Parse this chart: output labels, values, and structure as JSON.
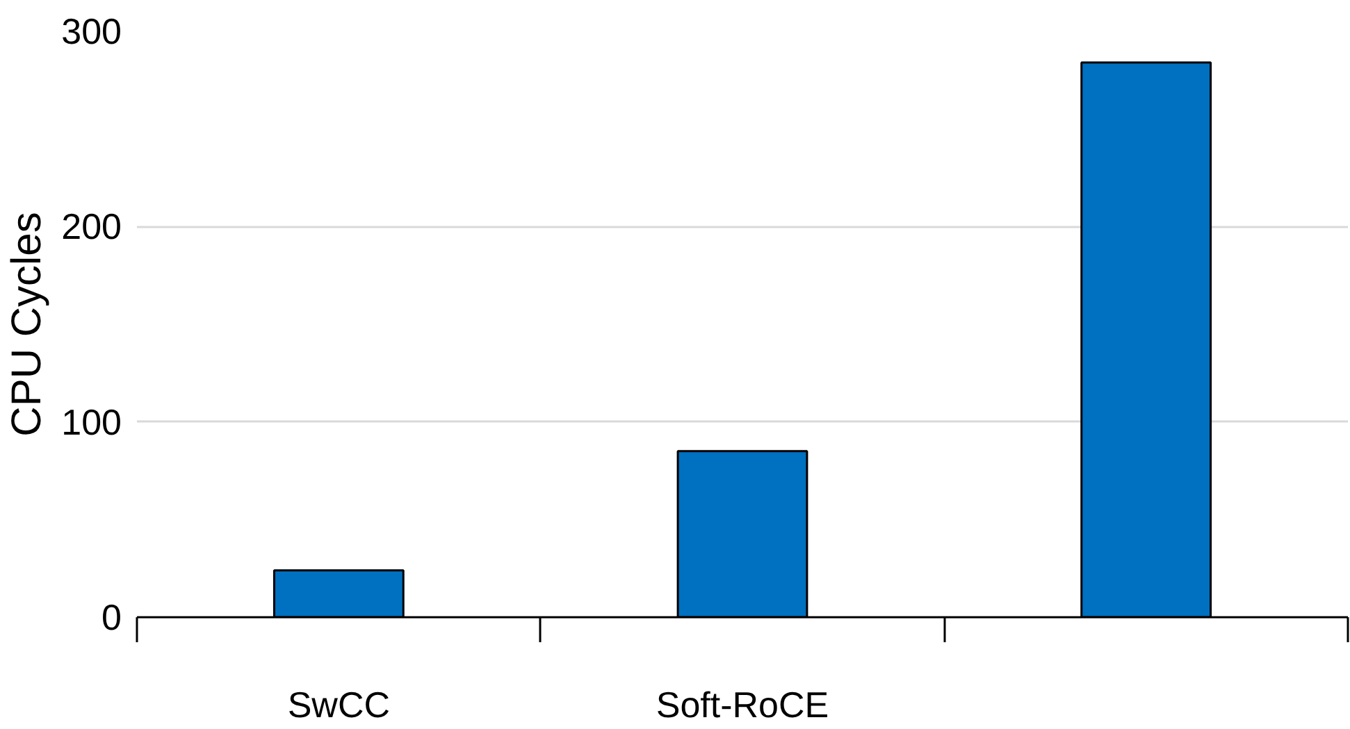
{
  "chart_data": {
    "type": "bar",
    "ylabel": "CPU Cycles",
    "categories": [
      "SwCC",
      "Soft-RoCE",
      null
    ],
    "values": [
      24,
      85,
      284
    ],
    "color": "#0070c0",
    "ylim": [
      0,
      300
    ],
    "yticks": [
      0,
      100,
      200,
      300
    ],
    "grid": "y"
  }
}
